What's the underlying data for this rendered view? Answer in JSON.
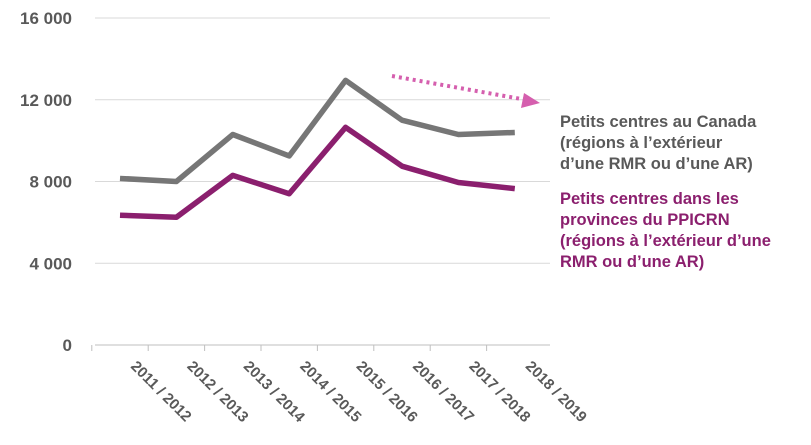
{
  "chart_data": {
    "type": "line",
    "categories": [
      "2011 / 2012",
      "2012 / 2013",
      "2013 / 2014",
      "2014 / 2015",
      "2015 / 2016",
      "2016 / 2017",
      "2017 / 2018",
      "2018 / 2019"
    ],
    "series": [
      {
        "name": "Petits centres au Canada (régions à l’extérieur d’une RMR ou d’une AR)",
        "legend_lines": [
          "Petits centres au Canada",
          "(régions à l’extérieur",
          "d’une RMR ou d’une AR)"
        ],
        "color": "#767676",
        "values": [
          8150,
          8000,
          10300,
          9250,
          12950,
          11000,
          10300,
          10400
        ]
      },
      {
        "name": "Petits centres dans les provinces du PPICRN (régions à l’extérieur d’une RMR ou d’une AR)",
        "legend_lines": [
          "Petits centres dans les",
          "provinces du PPICRN",
          "(régions à l’extérieur d’une",
          "RMR ou d’une AR)"
        ],
        "color": "#8b1f6e",
        "values": [
          6350,
          6250,
          8300,
          7400,
          10650,
          8750,
          7950,
          7650
        ]
      }
    ],
    "yticks": [
      0,
      4000,
      8000,
      12000,
      16000
    ],
    "ytick_labels": [
      "0",
      "4 000",
      "8 000",
      "12 000",
      "16 000"
    ],
    "ylim": [
      0,
      16000
    ],
    "grid": true,
    "annotation": {
      "type": "dotted-arrow",
      "color": "#d55fae",
      "meaning": "downward trend"
    },
    "title": "",
    "xlabel": "",
    "ylabel": ""
  }
}
